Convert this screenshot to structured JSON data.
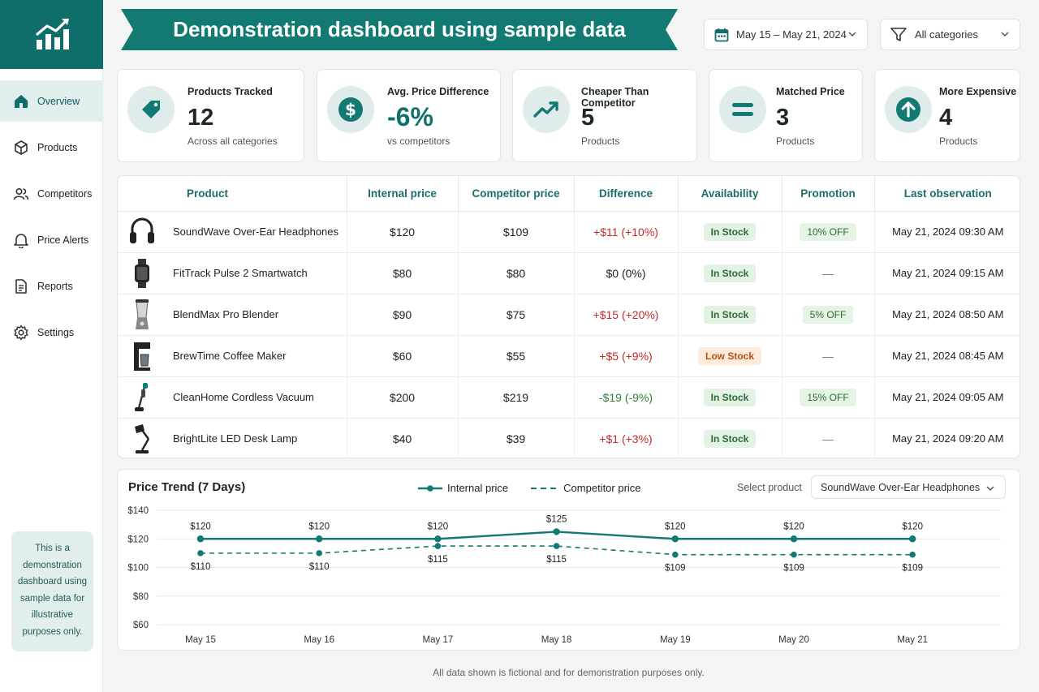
{
  "header": {
    "title": "Demonstration dashboard using sample data",
    "date_range": "May 15 – May 21, 2024",
    "category_filter": "All categories"
  },
  "sidebar": {
    "items": [
      {
        "label": "Overview",
        "icon": "home-icon",
        "active": true
      },
      {
        "label": "Products",
        "icon": "cube-icon"
      },
      {
        "label": "Competitors",
        "icon": "users-icon"
      },
      {
        "label": "Price Alerts",
        "icon": "bell-icon"
      },
      {
        "label": "Reports",
        "icon": "document-icon"
      },
      {
        "label": "Settings",
        "icon": "gear-icon"
      }
    ],
    "note": "This is a demonstration dashboard using sample data for illustrative purposes only."
  },
  "kpis": [
    {
      "label": "Products Tracked",
      "value": "12",
      "sub": "Across all categories",
      "icon": "tag-icon"
    },
    {
      "label": "Avg. Price Difference",
      "value": "-6%",
      "sub": "vs competitors",
      "icon": "dollar-icon"
    },
    {
      "label": "Cheaper Than Competitor",
      "value": "5",
      "sub": "Products",
      "icon": "trend-up-icon"
    },
    {
      "label": "Matched Price",
      "value": "3",
      "sub": "Products",
      "icon": "equals-icon"
    },
    {
      "label": "More Expensive",
      "value": "4",
      "sub": "Products",
      "icon": "arrow-up-icon"
    }
  ],
  "table": {
    "columns": [
      "Product",
      "Internal price",
      "Competitor price",
      "Difference",
      "Availability",
      "Promotion",
      "Last observation"
    ],
    "rows": [
      {
        "product": "SoundWave Over-Ear Headphones",
        "thumb": "headphones-icon",
        "internal": "$120",
        "competitor": "$109",
        "difference": "+$11 (+10%)",
        "diff_sign": "pos",
        "availability": "In Stock",
        "avail_type": "in",
        "promotion": "10% OFF",
        "last": "May 21, 2024 09:30 AM"
      },
      {
        "product": "FitTrack Pulse 2 Smartwatch",
        "thumb": "smartwatch-icon",
        "internal": "$80",
        "competitor": "$80",
        "difference": "$0 (0%)",
        "diff_sign": "zero",
        "availability": "In Stock",
        "avail_type": "in",
        "promotion": "—",
        "last": "May 21, 2024 09:15 AM"
      },
      {
        "product": "BlendMax Pro Blender",
        "thumb": "blender-icon",
        "internal": "$90",
        "competitor": "$75",
        "difference": "+$15 (+20%)",
        "diff_sign": "pos",
        "availability": "In Stock",
        "avail_type": "in",
        "promotion": "5% OFF",
        "last": "May 21, 2024 08:50 AM"
      },
      {
        "product": "BrewTime Coffee Maker",
        "thumb": "coffee-maker-icon",
        "internal": "$60",
        "competitor": "$55",
        "difference": "+$5 (+9%)",
        "diff_sign": "pos",
        "availability": "Low Stock",
        "avail_type": "low",
        "promotion": "—",
        "last": "May 21, 2024 08:45 AM"
      },
      {
        "product": "CleanHome Cordless Vacuum",
        "thumb": "vacuum-icon",
        "internal": "$200",
        "competitor": "$219",
        "difference": "-$19 (-9%)",
        "diff_sign": "neg",
        "availability": "In Stock",
        "avail_type": "in",
        "promotion": "15% OFF",
        "last": "May 21, 2024 09:05 AM"
      },
      {
        "product": "BrightLite LED Desk Lamp",
        "thumb": "desk-lamp-icon",
        "internal": "$40",
        "competitor": "$39",
        "difference": "+$1 (+3%)",
        "diff_sign": "pos",
        "availability": "In Stock",
        "avail_type": "in",
        "promotion": "—",
        "last": "May 21, 2024 09:20 AM"
      }
    ]
  },
  "chart": {
    "select_label": "Select product",
    "selected_product": "SoundWave Over-Ear Headphones"
  },
  "chart_data": {
    "type": "line",
    "title": "Price Trend (7 Days)",
    "categories": [
      "May 15",
      "May 16",
      "May 17",
      "May 18",
      "May 19",
      "May 20",
      "May 21"
    ],
    "series": [
      {
        "name": "Internal price",
        "values": [
          120,
          120,
          120,
          125,
          120,
          120,
          120
        ],
        "style": "solid"
      },
      {
        "name": "Competitor price",
        "values": [
          110,
          110,
          115,
          115,
          109,
          109,
          109
        ],
        "style": "dashed"
      }
    ],
    "ylim": [
      60,
      140
    ],
    "yticks": [
      "$60",
      "$80",
      "$100",
      "$120",
      "$140"
    ],
    "grid": true,
    "legend": "top-center",
    "color": "#137a73"
  },
  "footer": "All data shown is fictional and for demonstration purposes only."
}
